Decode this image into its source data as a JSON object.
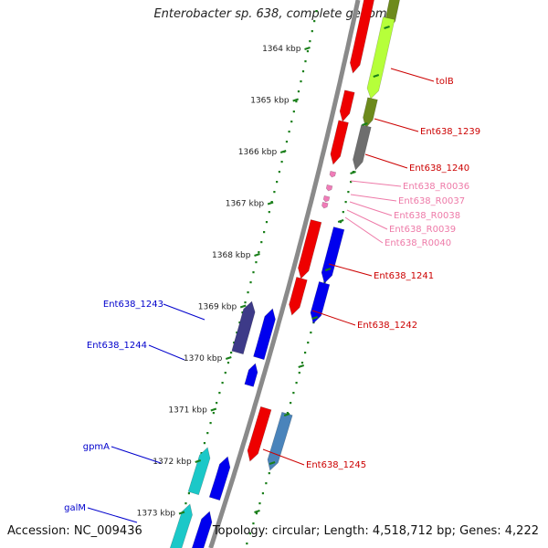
{
  "title": "Enterobacter sp. 638, complete genome",
  "accession": "Accession: NC_009436",
  "topology": "Topology: circular; Length: 4,518,712 bp; Genes: 4,222",
  "colors": {
    "backbone": "#8a8a8a",
    "tick": "#1a7f1a",
    "forward_label": "#cc0000",
    "rna_label": "#ee7aa8",
    "reverse_label": "#0000cc"
  },
  "scale_ticks": [
    "1364 kbp",
    "1365 kbp",
    "1366 kbp",
    "1367 kbp",
    "1368 kbp",
    "1369 kbp",
    "1370 kbp",
    "1371 kbp",
    "1372 kbp",
    "1373 kbp"
  ],
  "forward_labels": [
    {
      "text": "tolB",
      "color": "#cc0000"
    },
    {
      "text": "Ent638_1239",
      "color": "#cc0000"
    },
    {
      "text": "Ent638_1240",
      "color": "#cc0000"
    },
    {
      "text": "Ent638_R0036",
      "color": "#ee7aa8"
    },
    {
      "text": "Ent638_R0037",
      "color": "#ee7aa8"
    },
    {
      "text": "Ent638_R0038",
      "color": "#ee7aa8"
    },
    {
      "text": "Ent638_R0039",
      "color": "#ee7aa8"
    },
    {
      "text": "Ent638_R0040",
      "color": "#ee7aa8"
    },
    {
      "text": "Ent638_1241",
      "color": "#cc0000"
    },
    {
      "text": "Ent638_1242",
      "color": "#cc0000"
    },
    {
      "text": "Ent638_1245",
      "color": "#cc0000"
    }
  ],
  "reverse_labels": [
    {
      "text": "Ent638_1243",
      "color": "#0000cc"
    },
    {
      "text": "Ent638_1244",
      "color": "#0000cc"
    },
    {
      "text": "gpmA",
      "color": "#0000cc"
    },
    {
      "text": "galM",
      "color": "#0000cc"
    }
  ]
}
